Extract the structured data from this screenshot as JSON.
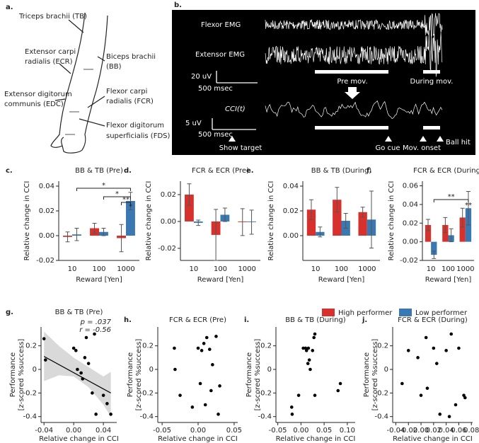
{
  "panel_a": {
    "letter": "a.",
    "labels": [
      {
        "lines": [
          "Triceps brachii (TB)"
        ]
      },
      {
        "lines": [
          "Extensor carpi",
          "radialis (ECR)"
        ]
      },
      {
        "lines": [
          "Biceps brachii",
          "(BB)"
        ]
      },
      {
        "lines": [
          "Extensor digitorum",
          "communis (EDC)"
        ]
      },
      {
        "lines": [
          "Flexor carpi",
          "radialis (FCR)"
        ]
      },
      {
        "lines": [
          "Flexor digitorum",
          "superficialis (FDS)"
        ]
      }
    ]
  },
  "panel_b": {
    "letter": "b.",
    "flexor": "Flexor EMG",
    "extensor": "Extensor EMG",
    "scale1_amp": "20 uV",
    "scale1_time": "500 msec",
    "pre": "Pre mov.",
    "during": "During mov.",
    "cci": "CCI(t)",
    "scale2_amp": "5 uV",
    "scale2_time": "500 msec",
    "show_target": "Show target",
    "go_cue": "Go cue",
    "mov_onset": "Mov. onset",
    "ball_hit": "Ball hit"
  },
  "chart_data": [
    {
      "type": "bar",
      "letter": "c.",
      "title": "BB & TB (Pre)",
      "xlabel": "Reward [Yen]",
      "ylabel": "Relative change in CCI",
      "categories": [
        "10",
        "100",
        "1000"
      ],
      "series": [
        {
          "name": "High performer",
          "color": "#d7312e",
          "values": [
            -0.001,
            0.006,
            -0.002
          ],
          "errors": [
            0.004,
            0.004,
            0.011
          ]
        },
        {
          "name": "Low performer",
          "color": "#3a78b2",
          "values": [
            0.001,
            0.003,
            0.028
          ],
          "errors": [
            0.005,
            0.003,
            0.007
          ]
        }
      ],
      "ylim": [
        -0.02,
        0.044
      ],
      "yticks": [
        -0.02,
        {
          "value": 0,
          "label": "0.00"
        },
        0.02,
        0.04
      ],
      "annotations": [
        "*",
        "*",
        "**",
        "*"
      ]
    },
    {
      "type": "bar",
      "letter": "d.",
      "title": "FCR & ECR (Pre)",
      "xlabel": "Reward [Yen]",
      "ylabel": "Relative change in CCI",
      "categories": [
        "10",
        "100",
        "1000"
      ],
      "series": [
        {
          "color": "#d7312e",
          "values": [
            0.02,
            -0.01,
            -0.0005
          ],
          "errors": [
            0.008,
            0.019,
            0.01
          ]
        },
        {
          "color": "#3a78b2",
          "values": [
            -0.001,
            0.005,
            -0.0005
          ],
          "errors": [
            0.002,
            0.005,
            0.009
          ]
        }
      ],
      "ylim": [
        -0.029,
        0.03
      ],
      "yticks": [
        -0.02,
        {
          "value": 0,
          "label": "0.00"
        },
        0.02
      ]
    },
    {
      "type": "bar",
      "letter": "e.",
      "title": "BB & TB (During)",
      "xlabel": "Reward [Yen]",
      "ylabel": "Relative change in CCI",
      "categories": [
        "10",
        "100",
        "1000"
      ],
      "series": [
        {
          "color": "#d7312e",
          "values": [
            0.021,
            0.029,
            0.019
          ],
          "errors": [
            0.008,
            0.01,
            0.004
          ]
        },
        {
          "color": "#3a78b2",
          "values": [
            0.003,
            0.012,
            0.013
          ],
          "errors": [
            0.004,
            0.006,
            0.023
          ]
        }
      ],
      "ylim": [
        -0.02,
        0.044
      ],
      "yticks": [
        {
          "value": 0,
          "label": "0.00"
        },
        0.02,
        0.04
      ]
    },
    {
      "type": "bar",
      "letter": "f.",
      "title": "FCR & ECR (During)",
      "xlabel": "Reward [Yen]",
      "ylabel": "Relative change in CCI",
      "categories": [
        "10",
        "100",
        "1000"
      ],
      "series": [
        {
          "color": "#d7312e",
          "values": [
            0.018,
            0.018,
            0.026
          ],
          "errors": [
            0.006,
            0.008,
            0.01
          ]
        },
        {
          "color": "#3a78b2",
          "values": [
            -0.014,
            0.007,
            0.036
          ],
          "errors": [
            0.004,
            0.007,
            0.018
          ]
        }
      ],
      "ylim": [
        -0.02,
        0.065
      ],
      "yticks": [
        -0.02,
        {
          "value": 0,
          "label": "0.00"
        },
        0.02,
        0.04,
        0.06
      ],
      "annotations": [
        "**",
        "**"
      ]
    },
    {
      "type": "scatter",
      "letter": "g.",
      "title": "BB & TB (Pre)",
      "xlabel": "Relative change in CCI",
      "ylabel": [
        "Performance",
        "[z-scored %success]"
      ],
      "x": [
        -0.04,
        -0.038,
        0.0,
        0.003,
        0.005,
        0.01,
        0.012,
        0.015,
        0.017,
        0.02,
        0.025,
        0.028,
        0.03,
        0.04,
        0.045,
        0.05
      ],
      "y": [
        0.26,
        0.08,
        0.18,
        0.16,
        0.0,
        -0.03,
        -0.08,
        0.1,
        0.27,
        0.05,
        -0.2,
        0.3,
        -0.38,
        -0.22,
        -0.29,
        -0.38
      ],
      "fit": {
        "x": [
          -0.04,
          0.05
        ],
        "y": [
          0.11,
          -0.2
        ]
      },
      "ci": {
        "x": [
          -0.04,
          -0.02,
          0.0,
          0.02,
          0.04,
          0.05
        ],
        "lower": [
          -0.1,
          -0.05,
          -0.06,
          -0.15,
          -0.3,
          -0.4
        ],
        "upper": [
          0.32,
          0.2,
          0.1,
          0.02,
          -0.06,
          -0.02
        ]
      },
      "xlim": [
        -0.044,
        0.058
      ],
      "xticks": [
        -0.04,
        {
          "value": 0,
          "label": "0.00"
        },
        0.04
      ],
      "ylim": [
        -0.45,
        0.36
      ],
      "yticks": [
        -0.4,
        -0.2,
        0,
        0.2
      ],
      "annotations": [
        "p = .037",
        "r = -0.56"
      ]
    },
    {
      "type": "scatter",
      "letter": "h.",
      "title": "FCR & ECR (Pre)",
      "xlabel": "Relative change in CCI",
      "ylabel": [
        "Performance",
        "[z-scored %success]"
      ],
      "x": [
        -0.033,
        -0.032,
        -0.025,
        -0.008,
        0.0,
        0.003,
        0.005,
        0.008,
        0.01,
        0.012,
        0.016,
        0.018,
        0.02,
        0.025,
        0.028,
        0.03
      ],
      "y": [
        0.18,
        0.0,
        -0.22,
        -0.32,
        0.18,
        -0.12,
        0.16,
        0.22,
        -0.3,
        0.27,
        0.17,
        -0.18,
        0.04,
        0.28,
        -0.38,
        -0.14
      ],
      "xlim": [
        -0.056,
        0.055
      ],
      "xticks": [
        -0.05,
        {
          "value": 0,
          "label": "0.00"
        },
        0.05
      ],
      "ylim": [
        -0.45,
        0.36
      ],
      "yticks": [
        -0.4,
        -0.2,
        0,
        0.2
      ]
    },
    {
      "type": "scatter",
      "letter": "i.",
      "title": "BB & TB (During)",
      "xlabel": "Relative change in CCI",
      "ylabel": [
        "Performance",
        "[z-scored %success]"
      ],
      "x": [
        -0.02,
        -0.019,
        -0.005,
        0.005,
        0.01,
        0.012,
        0.015,
        0.016,
        0.02,
        0.025,
        0.028,
        0.03,
        0.03,
        0.08,
        0.085,
        0.018
      ],
      "y": [
        -0.32,
        -0.38,
        -0.22,
        0.18,
        0.18,
        0.16,
        0.05,
        0.18,
        0.0,
        0.16,
        0.27,
        0.3,
        -0.22,
        -0.18,
        -0.12,
        0.08
      ],
      "xlim": [
        -0.054,
        0.117
      ],
      "xticks": [
        -0.05,
        {
          "value": 0,
          "label": "0.00"
        },
        0.05,
        {
          "value": 0.1,
          "label": "0.10"
        }
      ],
      "ylim": [
        -0.45,
        0.36
      ],
      "yticks": [
        -0.4,
        -0.2,
        0,
        0.2
      ]
    },
    {
      "type": "scatter",
      "letter": "j.",
      "title": "FCR & ECR (During)",
      "xlabel": "Relative change in CCI",
      "ylabel": [
        "Performance",
        "[z-scored %success]"
      ],
      "x": [
        -0.03,
        -0.02,
        -0.005,
        0.0,
        0.008,
        0.01,
        0.02,
        0.025,
        0.03,
        0.04,
        0.045,
        0.048,
        0.055,
        0.06,
        0.068,
        0.07
      ],
      "y": [
        -0.12,
        0.16,
        0.1,
        -0.22,
        0.27,
        -0.16,
        0.18,
        0.05,
        -0.38,
        0.16,
        -0.4,
        0.3,
        -0.3,
        0.18,
        -0.22,
        -0.24
      ],
      "xlim": [
        -0.045,
        0.082
      ],
      "xticks": [
        -0.04,
        -0.02,
        {
          "value": 0,
          "label": "0.00"
        },
        0.02,
        0.04,
        0.06,
        0.08
      ],
      "ylim": [
        -0.45,
        0.36
      ],
      "yticks": [
        -0.4,
        -0.2,
        0,
        0.2
      ]
    }
  ]
}
